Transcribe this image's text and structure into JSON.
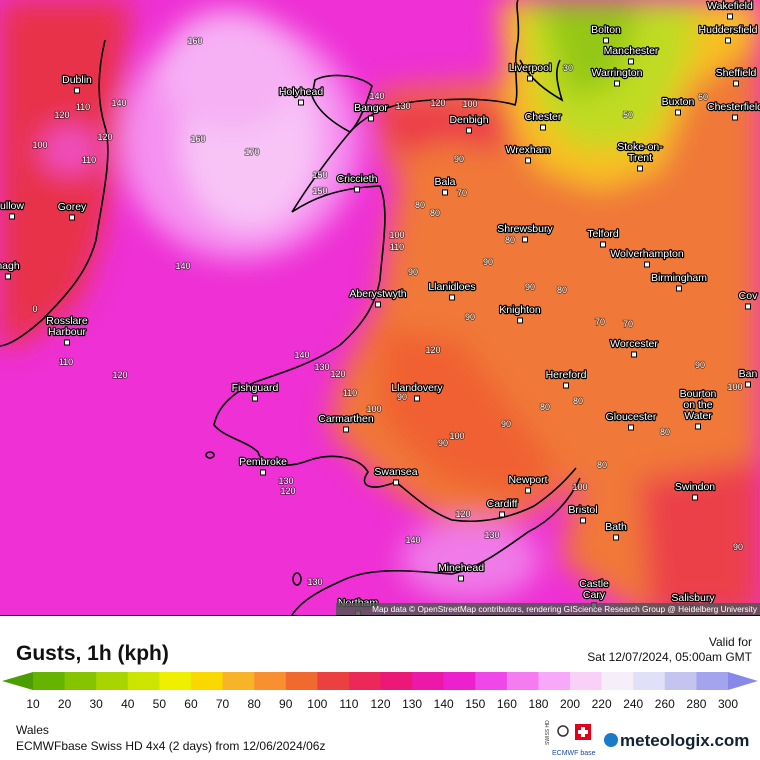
{
  "map": {
    "attribution": "Map data © OpenStreetMap contributors, rendering GIScience Research Group @ Heidelberg University",
    "places": [
      [
        "Wakefield"
      ],
      [
        "Bolton"
      ],
      [
        "Huddersfield"
      ],
      [
        "Manchester"
      ],
      [
        "Dublin"
      ],
      [
        "Liverpool"
      ],
      [
        "Warrington"
      ],
      [
        "Sheffield"
      ],
      [
        "Holyhead"
      ],
      [
        "Bangor"
      ],
      [
        "Buxton"
      ],
      [
        "Chester"
      ],
      [
        "Denbigh"
      ],
      [
        "Chesterfield"
      ],
      [
        "Wrexham"
      ],
      [
        "Stoke-on-",
        "Trent"
      ],
      [
        "Criccieth"
      ],
      [
        "Bala"
      ],
      [
        "Gorey"
      ],
      [
        "ullow"
      ],
      [
        "nagh"
      ],
      [
        "Shrewsbury"
      ],
      [
        "Telford"
      ],
      [
        "Wolverhampton"
      ],
      [
        "Birmingham"
      ],
      [
        "Aberystwyth"
      ],
      [
        "Llanidloes"
      ],
      [
        "Cov"
      ],
      [
        "Rosslare",
        "Harbour"
      ],
      [
        "Knighton"
      ],
      [
        "Worcester"
      ],
      [
        "Ban"
      ],
      [
        "Hereford"
      ],
      [
        "Fishguard"
      ],
      [
        "Llandovery"
      ],
      [
        "Bourton",
        "on the",
        "Water"
      ],
      [
        "Carmarthen"
      ],
      [
        "Gloucester"
      ],
      [
        "Pembroke"
      ],
      [
        "Swansea"
      ],
      [
        "Newport"
      ],
      [
        "Swindon"
      ],
      [
        "Cardiff"
      ],
      [
        "Bristol"
      ],
      [
        "Bath"
      ],
      [
        "Minehead"
      ],
      [
        "Castle",
        "Cary"
      ],
      [
        "Salisbury"
      ],
      [
        "Northam"
      ]
    ],
    "contour_labels": [
      160,
      170,
      160,
      140,
      110,
      120,
      100,
      110,
      120,
      140,
      140,
      130,
      120,
      100,
      30,
      60,
      50,
      90,
      70,
      80,
      80,
      150,
      150,
      100,
      110,
      90,
      90,
      80,
      90,
      80,
      70,
      70,
      90,
      120,
      140,
      130,
      120,
      110,
      100,
      90,
      100,
      90,
      80,
      80,
      90,
      100,
      120,
      130,
      140,
      130,
      120,
      110,
      130,
      120,
      90,
      80,
      100,
      90,
      80,
      0
    ]
  },
  "legend": {
    "title": "Gusts, 1h (kph)",
    "valid_label": "Valid for",
    "valid_time": "Sat 12/07/2024, 05:00am GMT",
    "ticks": [
      10,
      20,
      30,
      40,
      50,
      60,
      70,
      80,
      90,
      100,
      110,
      120,
      130,
      140,
      150,
      160,
      180,
      200,
      220,
      240,
      260,
      280,
      300
    ],
    "colors": [
      "#4a9e00",
      "#66b400",
      "#86c400",
      "#a8d400",
      "#cce400",
      "#eef000",
      "#f8d800",
      "#f8b428",
      "#f89030",
      "#f06a30",
      "#ec4040",
      "#ec2858",
      "#ec1878",
      "#ec18a8",
      "#ec20cc",
      "#f048e8",
      "#f47cf0",
      "#f8a8f8",
      "#f8d0f8",
      "#f6eef8",
      "#e0e0f8",
      "#c4c4f0",
      "#a4a4ee",
      "#8888e8"
    ]
  },
  "footer": {
    "region": "Wales",
    "model": "ECMWFbase Swiss HD 4x4 (2 days) from  12/06/2024/06z",
    "logo_top": "SWISS HD",
    "logo_bottom": "ECMWF base",
    "brand": "meteologix.com"
  }
}
